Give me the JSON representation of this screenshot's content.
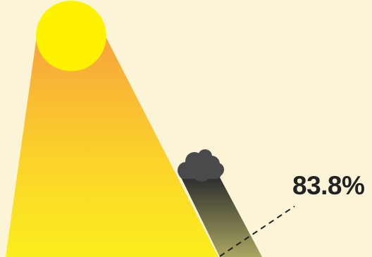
{
  "percentage_label": "83.8%",
  "colors": {
    "background": "#fbf4d7",
    "sun": "#fff200",
    "beam_top": "#f7a43d",
    "beam_bottom": "#fbee1e",
    "cloud": "#4a4a4d",
    "shadow_top": "#2a2a2c",
    "shadow_bottom": "#a9a661",
    "leader_line": "#222222",
    "label_text": "#222222"
  },
  "icons": {
    "sun": "sun-icon",
    "cloud": "cloud-icon"
  }
}
